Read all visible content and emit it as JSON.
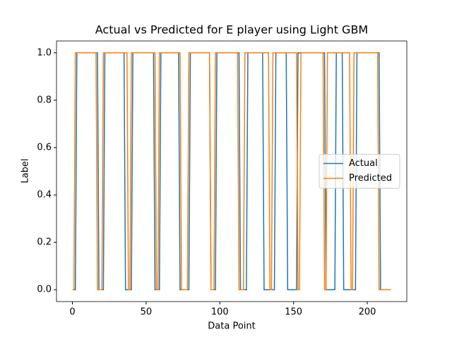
{
  "chart_data": {
    "type": "line",
    "title": "Actual vs Predicted for E player using Light GBM",
    "x_label": "Data Point",
    "y_label": "Label",
    "series": [
      {
        "name": "Actual",
        "color": "#1f77b4",
        "x": [
          0,
          2,
          3,
          17,
          18,
          21,
          22,
          35,
          36,
          40,
          41,
          55,
          56,
          59,
          60,
          72,
          73,
          79,
          80,
          93,
          94,
          97,
          98,
          113,
          114,
          118,
          119,
          129,
          130,
          137,
          138,
          145,
          146,
          152,
          153,
          171,
          172,
          178,
          179,
          183,
          184,
          192,
          193,
          208,
          209,
          216
        ],
        "values": [
          0,
          0,
          1,
          1,
          0,
          0,
          1,
          1,
          0,
          0,
          1,
          1,
          0,
          0,
          1,
          1,
          0,
          0,
          1,
          1,
          0,
          0,
          1,
          1,
          0,
          0,
          1,
          1,
          0,
          0,
          1,
          1,
          0,
          0,
          1,
          1,
          0,
          0,
          1,
          1,
          0,
          0,
          1,
          1,
          0,
          0
        ]
      },
      {
        "name": "Predicted",
        "color": "#ff7f0e",
        "x": [
          0,
          1,
          2,
          16,
          17,
          20,
          21,
          37,
          38,
          39,
          40,
          56,
          57,
          58,
          59,
          73,
          74,
          78,
          79,
          93,
          94,
          96,
          97,
          112,
          113,
          116,
          117,
          133,
          134,
          135,
          136,
          152,
          153,
          154,
          155,
          170,
          171,
          172,
          173,
          188,
          189,
          190,
          191,
          207,
          208,
          216
        ],
        "values": [
          0,
          0,
          1,
          1,
          0,
          0,
          1,
          1,
          0,
          0,
          1,
          1,
          0,
          0,
          1,
          1,
          0,
          0,
          1,
          1,
          0,
          0,
          1,
          1,
          0,
          0,
          1,
          1,
          0,
          0,
          1,
          1,
          0,
          0,
          1,
          1,
          0,
          0,
          1,
          1,
          0,
          0,
          1,
          1,
          0,
          0
        ]
      }
    ],
    "xlim": [
      -10.8,
      226.8
    ],
    "ylim": [
      -0.05,
      1.05
    ],
    "xticks": [
      0,
      50,
      100,
      150,
      200
    ],
    "yticks": [
      {
        "value": 0,
        "label": "0.0"
      },
      {
        "value": 0.2,
        "label": "0.2"
      },
      {
        "value": 0.4,
        "label": "0.4"
      },
      {
        "value": 0.6,
        "label": "0.6"
      },
      {
        "value": 0.8,
        "label": "0.8"
      },
      {
        "value": 1,
        "label": "1.0"
      }
    ],
    "legend": "center right",
    "grid": false
  }
}
